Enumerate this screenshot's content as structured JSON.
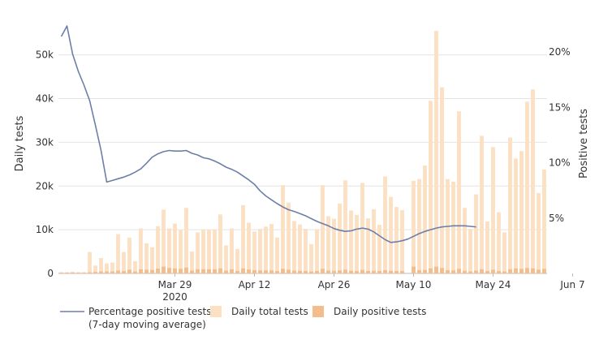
{
  "chart_data": {
    "type": "bar",
    "title": "",
    "ylabel_left": "Daily tests",
    "ylabel_right": "Positive tests",
    "x_ticks": [
      {
        "label": "Mar 29",
        "sub": "2020",
        "index": 20
      },
      {
        "label": "Apr 12",
        "sub": "",
        "index": 34
      },
      {
        "label": "Apr 26",
        "sub": "",
        "index": 48
      },
      {
        "label": "May 10",
        "sub": "",
        "index": 62
      },
      {
        "label": "May 24",
        "sub": "",
        "index": 76
      },
      {
        "label": "Jun 7",
        "sub": "",
        "index": 90
      }
    ],
    "y_left": {
      "min": 0,
      "max": 57000,
      "ticks": [
        0,
        10000,
        20000,
        30000,
        40000,
        50000
      ],
      "tick_labels": [
        "0",
        "10k",
        "20k",
        "30k",
        "40k",
        "50k"
      ]
    },
    "y_right": {
      "min": 0,
      "max": 0.225,
      "ticks": [
        0.05,
        0.1,
        0.15,
        0.2
      ],
      "tick_labels": [
        "5%",
        "10%",
        "15%",
        "20%"
      ]
    },
    "grid": true,
    "legend_position": "bottom",
    "series": [
      {
        "name": "Daily total tests",
        "kind": "bar",
        "color": "#fce0c4",
        "values": [
          300,
          300,
          400,
          300,
          300,
          4900,
          1800,
          3500,
          2300,
          2500,
          9000,
          4900,
          8200,
          2800,
          10300,
          6900,
          6000,
          10800,
          14600,
          10300,
          11400,
          9900,
          15000,
          5000,
          9400,
          10100,
          10100,
          10100,
          13500,
          6400,
          10300,
          5600,
          15600,
          11600,
          9600,
          10200,
          10700,
          11300,
          8200,
          20200,
          16200,
          12000,
          11200,
          10200,
          6700,
          10100,
          20200,
          13100,
          12500,
          16000,
          21300,
          14400,
          13400,
          20700,
          12600,
          14700,
          11100,
          22200,
          17500,
          15200,
          14500,
          0,
          21200,
          21600,
          24700,
          39500,
          55500,
          42600,
          21600,
          21000,
          37100,
          15000,
          10200,
          18100,
          31500,
          11900,
          28900,
          14000,
          9400,
          31100,
          26300,
          28000,
          39300,
          42100,
          18400,
          23800
        ]
      },
      {
        "name": "Daily positive tests",
        "kind": "bar",
        "color": "#f4be8c",
        "values": [
          150,
          150,
          200,
          150,
          150,
          250,
          350,
          450,
          450,
          450,
          650,
          550,
          850,
          450,
          950,
          850,
          800,
          1100,
          1550,
          1250,
          1150,
          1050,
          1350,
          650,
          950,
          950,
          950,
          950,
          1150,
          650,
          950,
          550,
          1150,
          900,
          750,
          700,
          700,
          700,
          550,
          1050,
          850,
          650,
          600,
          550,
          450,
          550,
          1050,
          650,
          600,
          700,
          850,
          600,
          550,
          800,
          550,
          600,
          550,
          750,
          600,
          550,
          550,
          0,
          1550,
          750,
          800,
          1150,
          1550,
          1250,
          750,
          700,
          1050,
          600,
          450,
          650,
          950,
          550,
          850,
          550,
          450,
          950,
          1150,
          1050,
          1250,
          1150,
          850,
          1050
        ]
      },
      {
        "name": "Percentage positive tests",
        "name_line2": "(7-day moving average)",
        "kind": "line",
        "axis": "right",
        "color": "#6d7fa8",
        "points": [
          [
            0,
            0.214
          ],
          [
            1,
            0.2235
          ],
          [
            2,
            0.198
          ],
          [
            3,
            0.1825
          ],
          [
            4,
            0.17
          ],
          [
            5,
            0.156
          ],
          [
            6,
            0.134
          ],
          [
            7,
            0.111
          ],
          [
            8,
            0.0825
          ],
          [
            9,
            0.084
          ],
          [
            10,
            0.0855
          ],
          [
            11,
            0.087
          ],
          [
            12,
            0.089
          ],
          [
            13,
            0.0915
          ],
          [
            14,
            0.0945
          ],
          [
            15,
            0.0995
          ],
          [
            16,
            0.105
          ],
          [
            17,
            0.108
          ],
          [
            18,
            0.11
          ],
          [
            19,
            0.111
          ],
          [
            20,
            0.1105
          ],
          [
            21,
            0.1105
          ],
          [
            22,
            0.111
          ],
          [
            23,
            0.1085
          ],
          [
            24,
            0.107
          ],
          [
            25,
            0.1045
          ],
          [
            26,
            0.1035
          ],
          [
            27,
            0.1015
          ],
          [
            28,
            0.099
          ],
          [
            29,
            0.096
          ],
          [
            30,
            0.094
          ],
          [
            31,
            0.0915
          ],
          [
            32,
            0.088
          ],
          [
            33,
            0.0845
          ],
          [
            34,
            0.0805
          ],
          [
            35,
            0.0745
          ],
          [
            36,
            0.07
          ],
          [
            37,
            0.0665
          ],
          [
            38,
            0.063
          ],
          [
            39,
            0.06
          ],
          [
            40,
            0.0575
          ],
          [
            41,
            0.056
          ],
          [
            42,
            0.054
          ],
          [
            43,
            0.052
          ],
          [
            44,
            0.0495
          ],
          [
            45,
            0.047
          ],
          [
            46,
            0.045
          ],
          [
            47,
            0.043
          ],
          [
            48,
            0.0405
          ],
          [
            49,
            0.039
          ],
          [
            50,
            0.038
          ],
          [
            51,
            0.0385
          ],
          [
            52,
            0.04
          ],
          [
            53,
            0.041
          ],
          [
            54,
            0.04
          ],
          [
            55,
            0.0375
          ],
          [
            56,
            0.034
          ],
          [
            57,
            0.0305
          ],
          [
            58,
            0.028
          ],
          [
            59,
            0.0285
          ],
          [
            60,
            0.0295
          ],
          [
            61,
            0.031
          ],
          [
            62,
            0.0335
          ],
          [
            63,
            0.036
          ],
          [
            64,
            0.038
          ],
          [
            65,
            0.0395
          ],
          [
            66,
            0.041
          ],
          [
            67,
            0.042
          ],
          [
            68,
            0.0425
          ],
          [
            69,
            0.043
          ],
          [
            70,
            0.043
          ],
          [
            71,
            0.043
          ],
          [
            72,
            0.0425
          ],
          [
            73,
            0.042
          ]
        ]
      }
    ]
  }
}
